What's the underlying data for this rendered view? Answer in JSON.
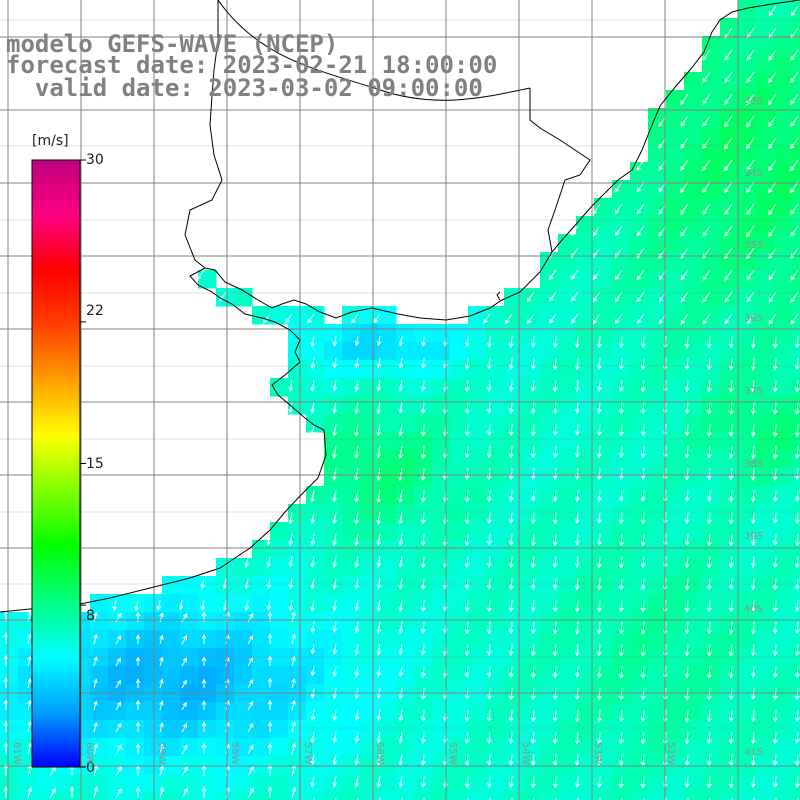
{
  "title": {
    "line1": "modelo GEFS-WAVE (NCEP)",
    "line2": "forecast date: 2023-02-21 18:00:00",
    "line3": "  valid date: 2023-03-02 09:00:00"
  },
  "colorbar": {
    "units": "[m/s]",
    "ticks": [
      "30",
      "22",
      "15",
      "8",
      "0"
    ],
    "tick_values": [
      30,
      22,
      15,
      8,
      0
    ],
    "range": [
      0,
      30
    ],
    "colors": [
      "#0000ff",
      "#00a0ff",
      "#00ffff",
      "#00ff80",
      "#00ff00",
      "#80ff00",
      "#ffff00",
      "#ffa000",
      "#ff4000",
      "#ff0000",
      "#ff0080",
      "#c00080"
    ]
  },
  "map": {
    "variable": "wind speed and direction",
    "lat_labels": [
      "33S",
      "34S",
      "35S",
      "36S",
      "37S",
      "38S",
      "39S",
      "40S",
      "41S"
    ],
    "lon_labels": [
      "61W",
      "60W",
      "59W",
      "58W",
      "57W",
      "56W",
      "55W",
      "54W",
      "53W",
      "52W"
    ],
    "colors": {
      "land": "#ffffff",
      "coastline": "#000000",
      "grid": "#808080",
      "arrows": "#ffffff",
      "calm_blue": "#0a40f0",
      "medium_cyan": "#00e0ff",
      "strong_green": "#30f070"
    }
  }
}
